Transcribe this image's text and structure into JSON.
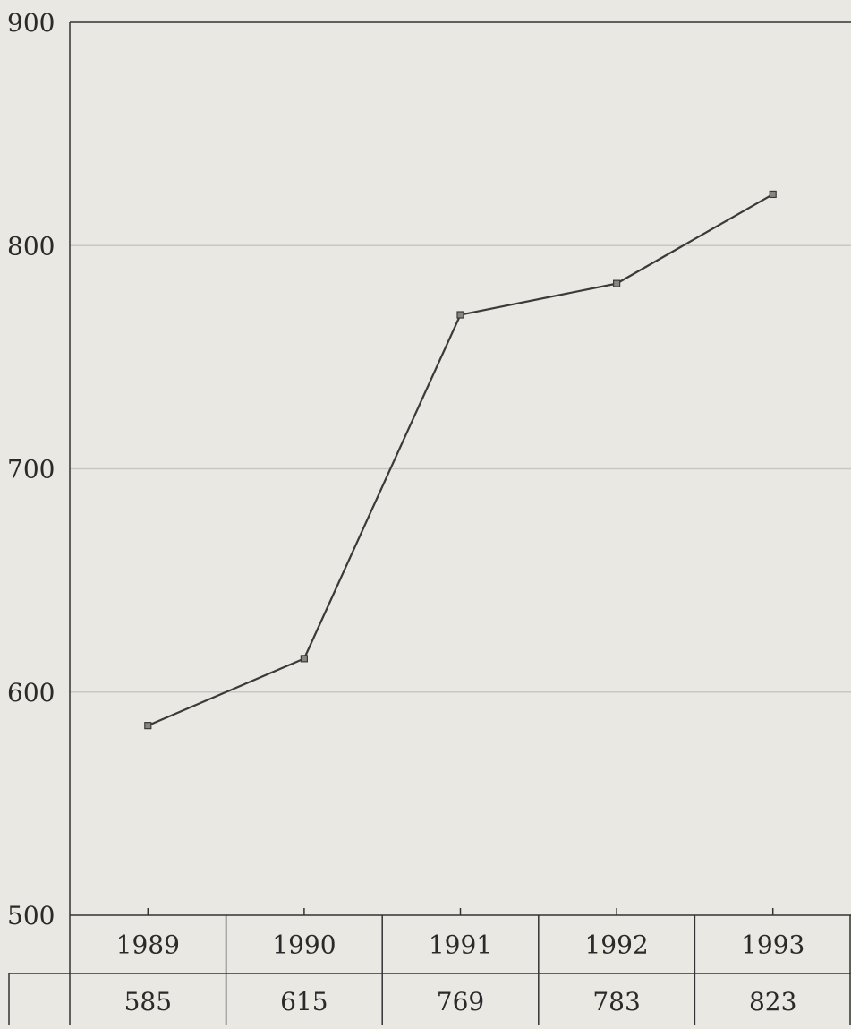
{
  "chart_data": {
    "type": "line",
    "categories": [
      "1989",
      "1990",
      "1991",
      "1992",
      "1993"
    ],
    "series": [
      {
        "values": [
          585,
          615,
          769,
          783,
          823
        ]
      }
    ],
    "y_ticks": [
      "500",
      "600",
      "700",
      "800",
      "900"
    ],
    "ylim": [
      500,
      900
    ],
    "grid": true,
    "table": {
      "headers": [
        "1989",
        "1990",
        "1991",
        "1992",
        "1993"
      ],
      "values": [
        "585",
        "615",
        "769",
        "783",
        "823"
      ]
    }
  },
  "colors": {
    "background": "#e9e8e3",
    "line": "#3a3a3a",
    "grid": "#c9c7c1",
    "axis": "#333333"
  }
}
